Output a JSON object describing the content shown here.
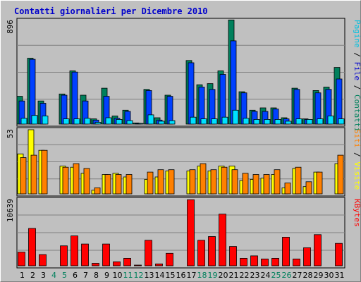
{
  "chart_data": {
    "type": "bar",
    "title": "Contatti giornalieri per Dicembre 2010",
    "colors": {
      "title": "#0000cc",
      "hits": "#00805c",
      "files": "#0040ff",
      "pages": "#00e0ff",
      "visits": "#ffff00",
      "sites": "#ff8000",
      "kbytes": "#ff0000",
      "weekend_label": "#00805c"
    },
    "days": [
      "1",
      "2",
      "3",
      "4",
      "5",
      "6",
      "7",
      "8",
      "9",
      "10",
      "11",
      "12",
      "13",
      "14",
      "15",
      "16",
      "17",
      "18",
      "19",
      "20",
      "21",
      "22",
      "23",
      "24",
      "25",
      "26",
      "27",
      "28",
      "29",
      "30",
      "31"
    ],
    "weekend_days": [
      "4",
      "5",
      "11",
      "12",
      "18",
      "19",
      "25",
      "26"
    ],
    "panels": [
      {
        "ylabel_max": "896",
        "ymax": 896,
        "side_label": [
          {
            "text": "Pagine",
            "color": "#00c0e0"
          },
          {
            "text": " / ",
            "color": "#000000"
          },
          {
            "text": "File",
            "color": "#0000cc"
          },
          {
            "text": " / ",
            "color": "#000000"
          },
          {
            "text": "Contatti",
            "color": "#00805c"
          }
        ],
        "series": [
          {
            "name": "Contatti",
            "color": "#00805c",
            "values": [
              240,
              570,
              200,
              0,
              260,
              460,
              250,
              45,
              310,
              70,
              120,
              10,
              300,
              55,
              250,
              0,
              550,
              340,
              350,
              460,
              900,
              280,
              120,
              140,
              140,
              55,
              310,
              45,
              290,
              320,
              490
            ]
          },
          {
            "name": "File",
            "color": "#0040ff",
            "values": [
              200,
              560,
              180,
              0,
              250,
              450,
              200,
              35,
              240,
              50,
              110,
              5,
              290,
              35,
              240,
              0,
              530,
              320,
              300,
              430,
              720,
              270,
              110,
              110,
              130,
              45,
              300,
              40,
              270,
              300,
              390
            ]
          },
          {
            "name": "Pagine",
            "color": "#00e0ff",
            "values": [
              50,
              75,
              70,
              0,
              45,
              45,
              50,
              15,
              55,
              40,
              30,
              5,
              80,
              25,
              30,
              0,
              60,
              45,
              45,
              60,
              120,
              50,
              40,
              40,
              40,
              25,
              45,
              40,
              45,
              70,
              45
            ]
          }
        ]
      },
      {
        "ylabel_max": "53",
        "ymax": 53,
        "side_label": [
          {
            "text": "Siti",
            "color": "#ff8000"
          },
          {
            "text": " / ",
            "color": "#000000"
          },
          {
            "text": "Visite",
            "color": "#ffff00"
          }
        ],
        "series": [
          {
            "name": "Visite",
            "color": "#ffff00",
            "values": [
              33,
              53,
              36,
              0,
              23,
              22,
              17,
              3,
              16,
              17,
              14,
              0,
              12,
              14,
              19,
              0,
              19,
              23,
              19,
              23,
              23,
              11,
              12,
              13,
              16,
              5,
              21,
              6,
              18,
              0,
              25
            ]
          },
          {
            "name": "Siti",
            "color": "#ff8000",
            "values": [
              30,
              32,
              36,
              0,
              22,
              25,
              21,
              5,
              16,
              16,
              16,
              0,
              18,
              20,
              20,
              0,
              20,
              25,
              20,
              22,
              20,
              17,
              16,
              16,
              20,
              9,
              22,
              10,
              18,
              0,
              32
            ]
          }
        ]
      },
      {
        "ylabel_max": "10639",
        "ymax": 10639,
        "side_label": [
          {
            "text": "KBytes",
            "color": "#ff0000"
          }
        ],
        "series": [
          {
            "name": "KBytes",
            "color": "#ff0000",
            "values": [
              2200,
              6000,
              1800,
              0,
              3200,
              4800,
              3500,
              400,
              3500,
              650,
              1200,
              100,
              4100,
              300,
              2000,
              0,
              10600,
              4100,
              4700,
              8300,
              3100,
              1200,
              1600,
              1100,
              1200,
              4600,
              1100,
              2900,
              5000,
              0,
              3600
            ]
          }
        ]
      }
    ]
  }
}
